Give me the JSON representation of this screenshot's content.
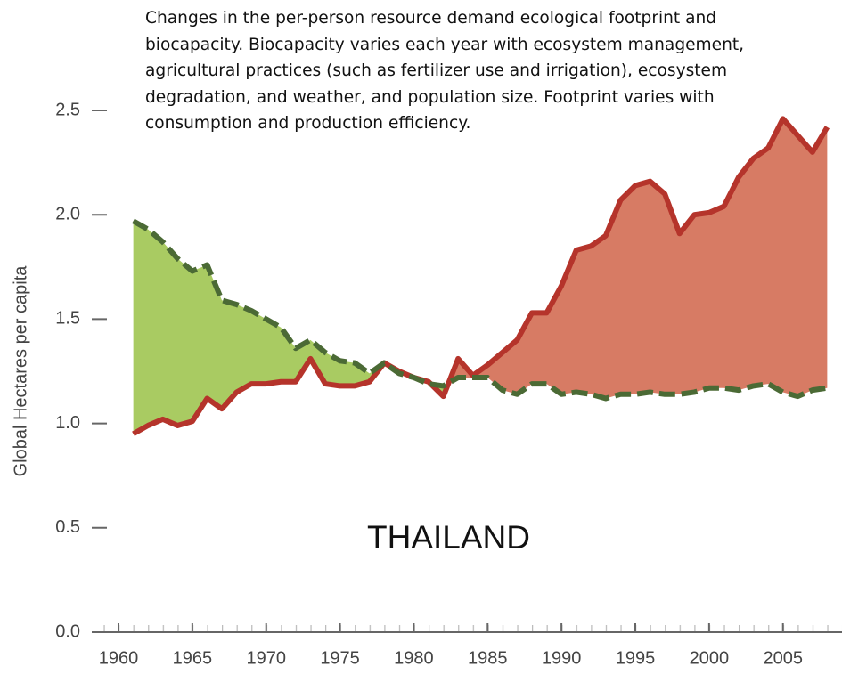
{
  "chart_data": {
    "type": "area_difference",
    "annotation": "Changes in the per-person resource demand ecological footprint and biocapacity. Biocapacity varies each year with ecosystem management, agricultural practices (such as fertilizer use and irrigation), ecosystem degradation, and weather, and population size. Footprint varies with consumption and production efficiency.",
    "label": "THAILAND",
    "ylabel": "Global Hectares per capita",
    "x": [
      1961,
      1962,
      1963,
      1964,
      1965,
      1966,
      1967,
      1968,
      1969,
      1970,
      1971,
      1972,
      1973,
      1974,
      1975,
      1976,
      1977,
      1978,
      1979,
      1980,
      1981,
      1982,
      1983,
      1984,
      1985,
      1986,
      1987,
      1988,
      1989,
      1990,
      1991,
      1992,
      1993,
      1994,
      1995,
      1996,
      1997,
      1998,
      1999,
      2000,
      2001,
      2002,
      2003,
      2004,
      2005,
      2006,
      2007,
      2008
    ],
    "series": [
      {
        "color": "#b5342b",
        "fill": "#d77b64",
        "style": "solid",
        "values": [
          0.95,
          0.99,
          1.02,
          0.99,
          1.01,
          1.12,
          1.07,
          1.15,
          1.19,
          1.19,
          1.2,
          1.2,
          1.31,
          1.19,
          1.18,
          1.18,
          1.2,
          1.29,
          1.25,
          1.22,
          1.2,
          1.13,
          1.31,
          1.23,
          1.28,
          1.34,
          1.4,
          1.53,
          1.53,
          1.66,
          1.83,
          1.85,
          1.9,
          2.07,
          2.14,
          2.16,
          2.1,
          1.91,
          2.0,
          2.01,
          2.04,
          2.18,
          2.27,
          2.32,
          2.46,
          2.38,
          2.3,
          2.42
        ]
      },
      {
        "color": "#4b6a35",
        "fill": "#a9cb62",
        "style": "dashed",
        "values": [
          1.97,
          1.93,
          1.87,
          1.79,
          1.73,
          1.76,
          1.59,
          1.57,
          1.54,
          1.5,
          1.46,
          1.36,
          1.4,
          1.34,
          1.3,
          1.29,
          1.24,
          1.29,
          1.24,
          1.22,
          1.19,
          1.18,
          1.22,
          1.22,
          1.22,
          1.16,
          1.14,
          1.19,
          1.19,
          1.14,
          1.15,
          1.14,
          1.12,
          1.14,
          1.14,
          1.15,
          1.14,
          1.14,
          1.15,
          1.17,
          1.17,
          1.16,
          1.18,
          1.19,
          1.15,
          1.13,
          1.16,
          1.17
        ]
      }
    ],
    "xlim": [
      1960,
      2009
    ],
    "xticks": [
      1960,
      1965,
      1970,
      1975,
      1980,
      1985,
      1990,
      1995,
      2000,
      2005
    ],
    "ylim": [
      0,
      2.5
    ],
    "yticks": [
      {
        "value": 0,
        "label": "0.0"
      },
      0.5,
      {
        "value": 1,
        "label": "1.0"
      },
      1.5,
      {
        "value": 2,
        "label": "2.0"
      },
      2.5
    ]
  }
}
